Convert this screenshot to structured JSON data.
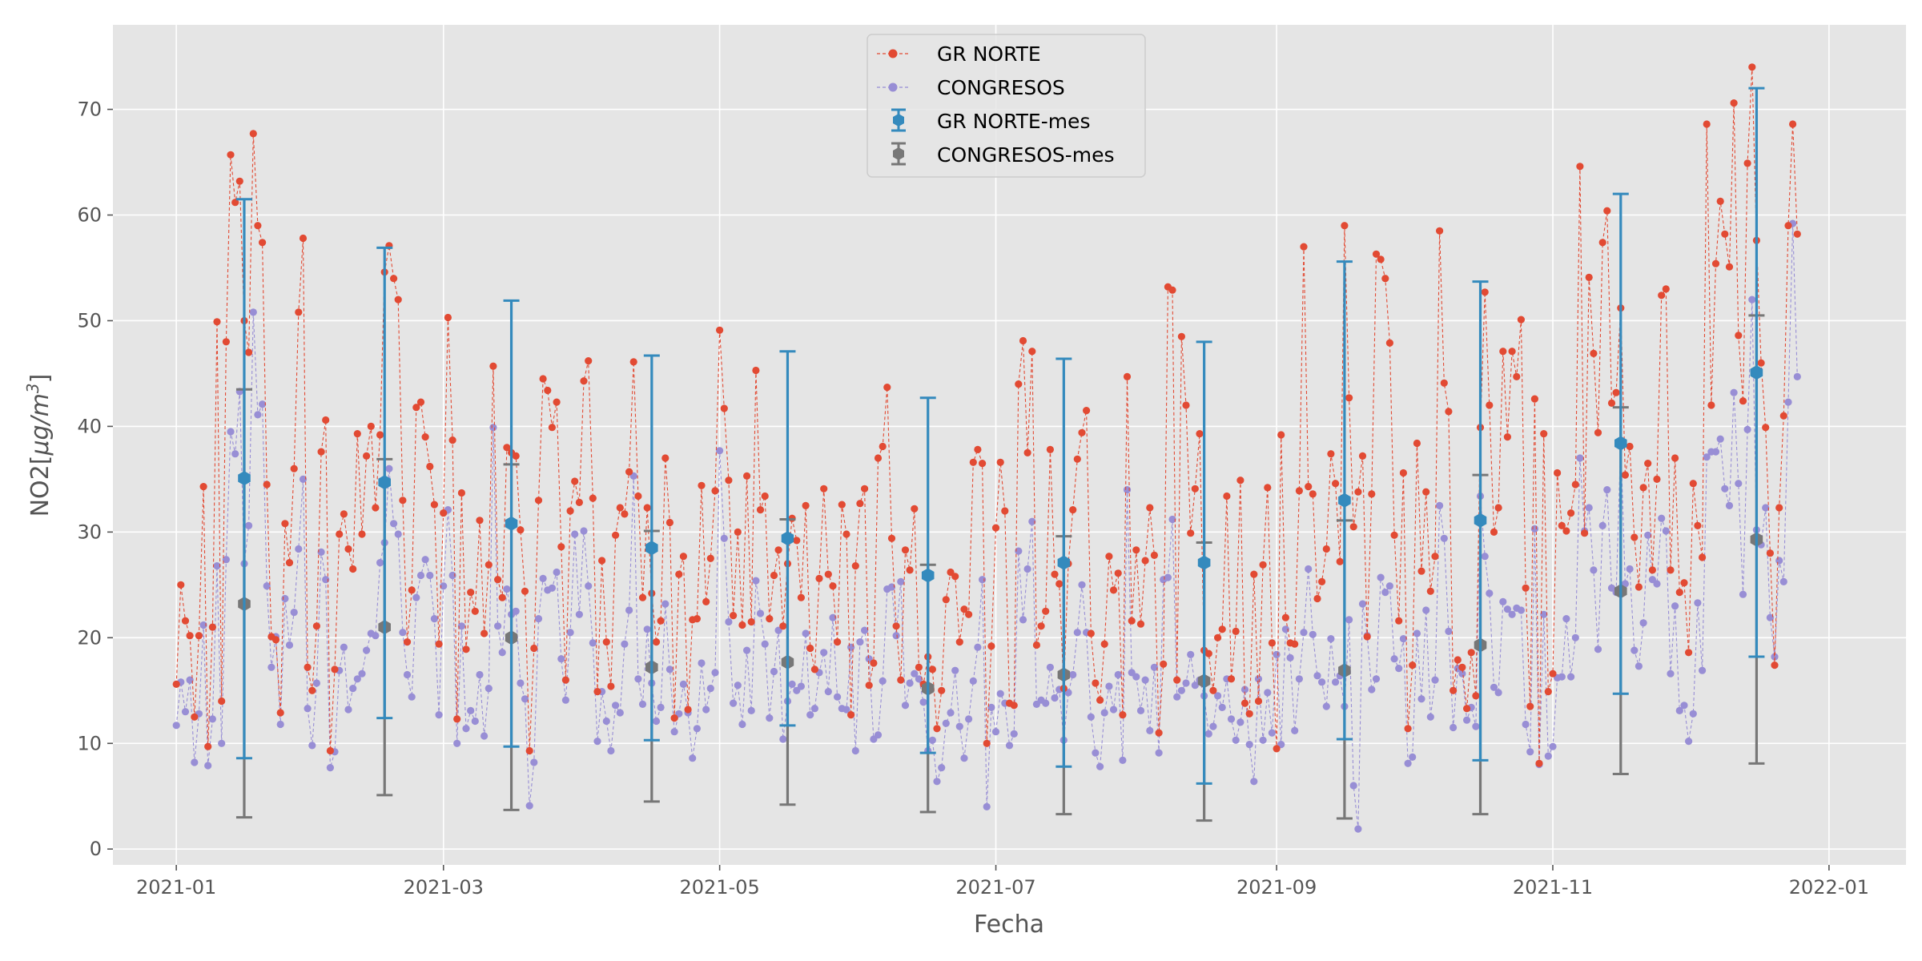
{
  "chart_data": {
    "type": "line",
    "xlabel": "Fecha",
    "ylabel": "NO2[μg/m³]",
    "ylabel_main": "NO2[",
    "ylabel_unit": "μg/m",
    "ylabel_exp": "3",
    "ylabel_close": "]",
    "xlim": [
      "2020-12-18",
      "2022-01-18"
    ],
    "ylim": [
      -1.5,
      78
    ],
    "grid": true,
    "legend_position": "top-center",
    "x_ticks": [
      "2021-01",
      "2021-03",
      "2021-05",
      "2021-07",
      "2021-09",
      "2021-11",
      "2022-01"
    ],
    "x_tick_dates": [
      "2021-01-01",
      "2021-03-01",
      "2021-05-01",
      "2021-07-01",
      "2021-09-01",
      "2021-11-01",
      "2022-01-01"
    ],
    "y_ticks": [
      0,
      10,
      20,
      30,
      40,
      50,
      60,
      70
    ],
    "start_date": "2021-01-01",
    "series": [
      {
        "name": "GR NORTE",
        "color": "#e24a33",
        "values": [
          15.6,
          25,
          21.6,
          20.2,
          12.5,
          20.2,
          34.3,
          9.7,
          21,
          49.9,
          14,
          48,
          65.7,
          61.2,
          63.2,
          50,
          47,
          67.7,
          59,
          57.4,
          34.5,
          20.1,
          19.8,
          12.9,
          30.8,
          27.1,
          36,
          50.8,
          57.8,
          17.2,
          15,
          21.1,
          37.6,
          40.6,
          9.3,
          17,
          29.8,
          31.7,
          28.4,
          26.5,
          39.3,
          29.8,
          37.2,
          40,
          32.3,
          39.2,
          54.6,
          57.1,
          54,
          52,
          33,
          19.6,
          24.5,
          41.8,
          42.3,
          39,
          36.2,
          32.6,
          19.4,
          31.8,
          50.3,
          38.7,
          12.3,
          33.7,
          18.9,
          24.3,
          22.5,
          31.1,
          20.4,
          26.9,
          45.7,
          25.5,
          23.8,
          38,
          37.5,
          37.2,
          30.2,
          24.4,
          9.3,
          19,
          33,
          44.5,
          43.4,
          39.9,
          42.3,
          28.6,
          16,
          32,
          34.8,
          32.8,
          44.3,
          46.2,
          33.2,
          14.9,
          27.3,
          19.6,
          15.4,
          29.7,
          32.3,
          31.7,
          35.7,
          46.1,
          33.4,
          23.8,
          32.3,
          24.2,
          19.6,
          21.6,
          37,
          30.9,
          12.4,
          26,
          27.7,
          13.2,
          21.7,
          21.8,
          34.4,
          23.4,
          27.5,
          33.9,
          49.1,
          41.7,
          34.9,
          22.1,
          30,
          21.2,
          35.3,
          21.5,
          45.3,
          32.1,
          33.4,
          21.8,
          25.9,
          28.3,
          21.1,
          27,
          31.3,
          29.2,
          23.8,
          32.5,
          19,
          17,
          25.6,
          34.1,
          26,
          24.9,
          19.6,
          32.6,
          29.8,
          12.7,
          26.8,
          32.7,
          34.1,
          15.5,
          17.6,
          37,
          38.1,
          43.7,
          29.4,
          21.1,
          16,
          28.3,
          26.4,
          32.2,
          17.2,
          15.6,
          18.2,
          17,
          11.4,
          15,
          23.6,
          26.2,
          25.8,
          19.6,
          22.7,
          22.2,
          36.6,
          37.8,
          36.5,
          10,
          19.2,
          30.4,
          36.6,
          32,
          13.8,
          13.6,
          44,
          48.1,
          37.5,
          47.1,
          19.3,
          21.1,
          22.5,
          37.8,
          26,
          25.1,
          15.2,
          27,
          32.1,
          36.9,
          39.4,
          41.5,
          20.4,
          15.7,
          14.1,
          19.4,
          27.7,
          24.5,
          26.1,
          12.7,
          44.7,
          21.6,
          28.3,
          21.3,
          27.3,
          32.3,
          27.8,
          11,
          17.5,
          53.2,
          52.9,
          16,
          48.5,
          42,
          29.9,
          34.1,
          39.3,
          18.8,
          18.5,
          15,
          20,
          20.8,
          33.4,
          16.1,
          20.6,
          34.9,
          13.8,
          12.8,
          26,
          14,
          26.9,
          34.2,
          19.5,
          9.5,
          39.2,
          21.9,
          19.5,
          19.4,
          33.9,
          57,
          34.3,
          33.6,
          23.7,
          25.3,
          28.4,
          37.4,
          34.6,
          27.2,
          59,
          42.7,
          30.5,
          33.8,
          37.2,
          20.1,
          33.6,
          56.3,
          55.8,
          54,
          47.9,
          29.7,
          21.6,
          35.6,
          11.4,
          17.4,
          38.4,
          26.3,
          33.8,
          24.4,
          27.7,
          58.5,
          44.1,
          41.4,
          15,
          17.9,
          17.2,
          13.3,
          18.6,
          14.5,
          39.9,
          52.7,
          42,
          30,
          32.3,
          47.1,
          39,
          47.1,
          44.7,
          50.1,
          24.7,
          13.5,
          42.6,
          8.1,
          39.3,
          14.9,
          16.6,
          35.6,
          30.6,
          30.1,
          31.8,
          34.5,
          64.6,
          29.9,
          54.1,
          46.9,
          39.4,
          57.4,
          60.4,
          42.2,
          43.2,
          51.2,
          35.4,
          38.1,
          29.5,
          24.8,
          34.2,
          36.5,
          26.4,
          35,
          52.4,
          53,
          26.4,
          37,
          24.3,
          25.2,
          18.6,
          34.6,
          30.6,
          27.6,
          68.6,
          42,
          55.4,
          61.3,
          58.2,
          55.1,
          70.6,
          48.6,
          42.4,
          64.9,
          74,
          57.6,
          46,
          39.9,
          28,
          17.4,
          32.3,
          41,
          59,
          68.6,
          58.2
        ]
      },
      {
        "name": "CONGRESOS",
        "color": "#988ed5",
        "values": [
          11.7,
          15.8,
          13,
          16,
          8.2,
          12.8,
          21.2,
          7.9,
          12.3,
          26.8,
          10,
          27.4,
          39.5,
          37.4,
          43.3,
          27,
          30.6,
          50.8,
          41.1,
          42.1,
          24.9,
          17.2,
          20.1,
          11.8,
          23.7,
          19.3,
          22.4,
          28.4,
          35,
          13.3,
          9.8,
          15.7,
          28.1,
          25.5,
          7.7,
          9.2,
          16.9,
          19.1,
          13.2,
          15.2,
          16.1,
          16.6,
          18.8,
          20.4,
          20.2,
          27.1,
          29,
          36,
          30.8,
          29.8,
          20.5,
          16.5,
          14.4,
          23.8,
          25.9,
          27.4,
          25.9,
          21.8,
          12.7,
          24.9,
          32.1,
          25.9,
          10,
          21.1,
          11.4,
          13.1,
          12.1,
          16.5,
          10.7,
          15.2,
          39.9,
          21.1,
          18.6,
          24.6,
          22.2,
          22.5,
          15.7,
          14.2,
          4.1,
          8.2,
          21.8,
          25.6,
          24.5,
          24.7,
          26.2,
          18,
          14.1,
          20.5,
          29.8,
          22.2,
          30.1,
          24.9,
          19.5,
          10.2,
          14.9,
          12.1,
          9.3,
          13.6,
          12.9,
          19.4,
          22.6,
          35.3,
          16.1,
          13.7,
          20.8,
          15.7,
          12.1,
          13.4,
          23.2,
          17,
          11.1,
          12.8,
          15.6,
          12.9,
          8.6,
          11.4,
          17.6,
          13.2,
          15.2,
          16.7,
          37.7,
          29.4,
          21.5,
          13.8,
          15.5,
          11.8,
          18.8,
          13.1,
          25.4,
          22.3,
          19.4,
          12.4,
          16.8,
          20.7,
          10.4,
          14,
          15.6,
          15,
          15.4,
          20.4,
          12.7,
          13.3,
          16.7,
          18.6,
          14.9,
          21.9,
          14.4,
          13.3,
          13.2,
          19.1,
          9.3,
          19.6,
          20.7,
          18,
          10.4,
          10.8,
          15.9,
          24.6,
          24.8,
          20.2,
          25.3,
          13.6,
          15.7,
          16.6,
          16.1,
          13.9,
          9.3,
          10.3,
          6.4,
          7.7,
          11.9,
          12.9,
          16.9,
          11.6,
          8.6,
          12.3,
          15.9,
          19.1,
          25.5,
          4,
          13.4,
          11.1,
          14.7,
          13.8,
          9.8,
          10.9,
          28.2,
          21.7,
          26.5,
          31,
          13.7,
          14.1,
          13.8,
          17.2,
          14.3,
          15.1,
          10.3,
          14.8,
          16.5,
          20.5,
          25,
          20.5,
          12.5,
          9.1,
          7.8,
          12.9,
          15.4,
          13.2,
          16.5,
          8.4,
          34,
          16.7,
          16.3,
          13.1,
          16,
          11.2,
          17.2,
          9.1,
          25.5,
          25.7,
          31.2,
          14.4,
          15,
          15.7,
          18.4,
          15.5,
          16,
          14.5,
          10.9,
          11.6,
          14.5,
          13.4,
          16.1,
          12.3,
          10.3,
          12,
          15.1,
          9.9,
          6.4,
          16.1,
          10.3,
          14.8,
          11,
          18.4,
          9.9,
          20.8,
          18.1,
          11.2,
          16.1,
          20.5,
          26.5,
          20.3,
          16.4,
          15.8,
          13.5,
          19.9,
          15.8,
          16.4,
          13.5,
          21.7,
          6,
          1.9,
          23.2,
          20.2,
          15.1,
          16.1,
          25.7,
          24.3,
          24.9,
          18,
          17.1,
          19.9,
          8.1,
          8.7,
          20.4,
          14.2,
          22.6,
          12.5,
          16,
          32.5,
          29.4,
          20.6,
          11.5,
          17.1,
          16.6,
          12.2,
          13.4,
          11.6,
          33.4,
          27.7,
          24.2,
          15.3,
          14.8,
          23.4,
          22.7,
          22.2,
          22.8,
          22.6,
          11.8,
          9.2,
          30.3,
          8,
          22.2,
          8.8,
          9.7,
          16.2,
          16.3,
          21.8,
          16.3,
          20,
          37,
          30.1,
          32.3,
          26.4,
          18.9,
          30.6,
          34,
          24.7,
          24.3,
          38.5,
          25.1,
          26.5,
          18.8,
          17.3,
          21.4,
          29.7,
          25.5,
          25.1,
          31.3,
          30.1,
          16.6,
          23,
          13.1,
          13.6,
          10.2,
          12.8,
          23.3,
          16.9,
          37.1,
          37.6,
          37.6,
          38.8,
          34.1,
          32.5,
          43.2,
          34.6,
          24.1,
          39.7,
          52,
          30.2,
          28.8,
          32.3,
          21.9,
          18.2,
          27.3,
          25.3,
          42.3,
          59.2,
          44.7
        ]
      },
      {
        "name": "GR NORTE-mes",
        "color": "#348abd",
        "months": [
          "2021-01",
          "2021-02",
          "2021-03",
          "2021-04",
          "2021-05",
          "2021-06",
          "2021-07",
          "2021-08",
          "2021-09",
          "2021-10",
          "2021-11",
          "2021-12"
        ],
        "mean": [
          35.1,
          34.7,
          30.8,
          28.5,
          29.4,
          25.9,
          27.1,
          27.1,
          33,
          31.1,
          38.4,
          45.1
        ],
        "err_low": [
          8.6,
          12.4,
          9.7,
          10.3,
          11.7,
          9.1,
          7.8,
          6.2,
          10.4,
          8.4,
          14.7,
          18.2
        ],
        "err_high": [
          61.5,
          56.9,
          51.9,
          46.7,
          47.1,
          42.7,
          46.4,
          48,
          55.6,
          53.7,
          62,
          72
        ]
      },
      {
        "name": "CONGRESOS-mes",
        "color": "#777777",
        "months": [
          "2021-01",
          "2021-02",
          "2021-03",
          "2021-04",
          "2021-05",
          "2021-06",
          "2021-07",
          "2021-08",
          "2021-09",
          "2021-10",
          "2021-11",
          "2021-12"
        ],
        "mean": [
          23.2,
          21,
          20,
          17.2,
          17.7,
          15.2,
          16.5,
          15.9,
          16.9,
          19.3,
          24.4,
          29.3
        ],
        "err_low": [
          3,
          5.1,
          3.7,
          4.5,
          4.2,
          3.5,
          3.3,
          2.7,
          2.9,
          3.3,
          7.1,
          8.1
        ],
        "err_high": [
          43.5,
          36.9,
          36.4,
          30.1,
          31.2,
          26.9,
          29.6,
          29,
          31.1,
          35.4,
          41.8,
          50.5
        ]
      }
    ]
  }
}
